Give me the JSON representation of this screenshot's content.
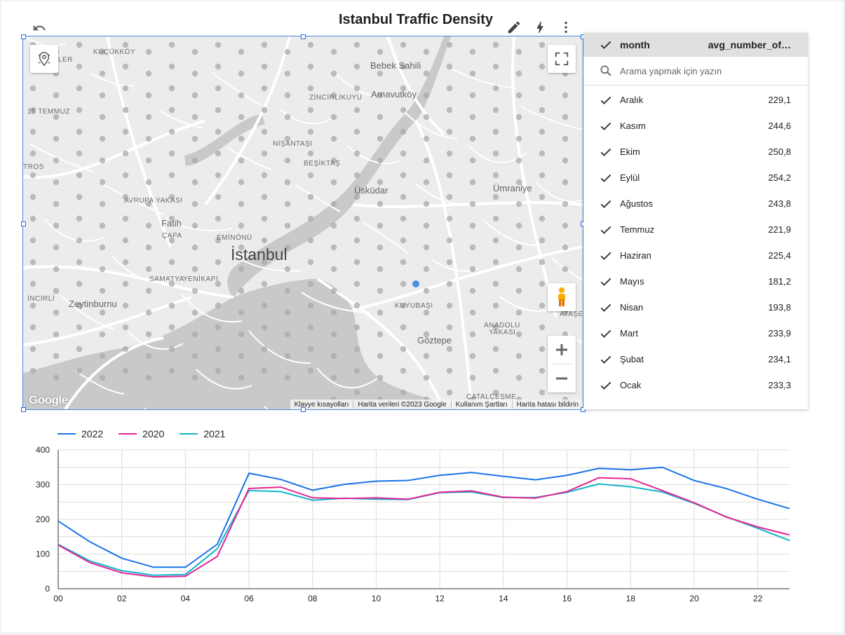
{
  "title": "Istanbul Traffic Density",
  "icons": {
    "undo": "undo-icon",
    "edit": "pencil-icon",
    "quick": "lightning-icon",
    "more": "more-vert-icon"
  },
  "map": {
    "labels": [
      {
        "text": "KÜÇÜKKÖY",
        "cls": ""
      },
      {
        "text": "YÜZEVLER",
        "cls": ""
      },
      {
        "text": "Bebek Sahili",
        "cls": "big"
      },
      {
        "text": "ZİNCİRLİKUYU",
        "cls": ""
      },
      {
        "text": "Arnavutköy",
        "cls": "big"
      },
      {
        "text": "15 TEMMUZ",
        "cls": ""
      },
      {
        "text": "NİŞANTAŞI",
        "cls": ""
      },
      {
        "text": "BEŞİKTAŞ",
        "cls": ""
      },
      {
        "text": "TROS",
        "cls": ""
      },
      {
        "text": "Üsküdar",
        "cls": "big"
      },
      {
        "text": "Ümraniye",
        "cls": "big"
      },
      {
        "text": "AVRUPA YAKASI",
        "cls": ""
      },
      {
        "text": "Fatih",
        "cls": "big"
      },
      {
        "text": "ÇAPA",
        "cls": ""
      },
      {
        "text": "EMİNÖNÜ",
        "cls": ""
      },
      {
        "text": "İstanbul",
        "cls": "city"
      },
      {
        "text": "SAMATYA",
        "cls": ""
      },
      {
        "text": "YENİKAPI",
        "cls": ""
      },
      {
        "text": "İNCİRLİ",
        "cls": ""
      },
      {
        "text": "Zeytinburnu",
        "cls": "big"
      },
      {
        "text": "KUYUBAŞI",
        "cls": ""
      },
      {
        "text": "ANADOLU",
        "cls": ""
      },
      {
        "text": "YAKASI",
        "cls": ""
      },
      {
        "text": "Göztepe",
        "cls": "big"
      },
      {
        "text": "ATAŞE",
        "cls": ""
      },
      {
        "text": "ÇATALÇEŞME",
        "cls": ""
      }
    ],
    "google": "Google",
    "attribution": [
      "Klavye kısayolları",
      "Harita verileri ©2023 Google",
      "Kullanım Şartları",
      "Harita hatası bildirin"
    ]
  },
  "table": {
    "header": {
      "col1": "month",
      "col2": "avg_number_of…"
    },
    "search_placeholder": "Arama yapmak için yazın",
    "rows": [
      {
        "name": "Aralık",
        "value": "229,1"
      },
      {
        "name": "Kasım",
        "value": "244,6"
      },
      {
        "name": "Ekim",
        "value": "250,8"
      },
      {
        "name": "Eylül",
        "value": "254,2"
      },
      {
        "name": "Ağustos",
        "value": "243,8"
      },
      {
        "name": "Temmuz",
        "value": "221,9"
      },
      {
        "name": "Haziran",
        "value": "225,4"
      },
      {
        "name": "Mayıs",
        "value": "181,2"
      },
      {
        "name": "Nisan",
        "value": "193,8"
      },
      {
        "name": "Mart",
        "value": "233,9"
      },
      {
        "name": "Şubat",
        "value": "234,1"
      },
      {
        "name": "Ocak",
        "value": "233,3"
      }
    ]
  },
  "chart_data": {
    "type": "line",
    "x": [
      0,
      1,
      2,
      3,
      4,
      5,
      6,
      7,
      8,
      9,
      10,
      11,
      12,
      13,
      14,
      15,
      16,
      17,
      18,
      19,
      20,
      21,
      22,
      23
    ],
    "xticks": [
      "00",
      "02",
      "04",
      "06",
      "08",
      "10",
      "12",
      "14",
      "16",
      "18",
      "20",
      "22"
    ],
    "ylim": [
      0,
      400
    ],
    "yticks": [
      0,
      100,
      200,
      300,
      400
    ],
    "grid": true,
    "legend": "top-left",
    "series": [
      {
        "name": "2022",
        "color": "#1a73e8",
        "values": [
          195,
          135,
          88,
          62,
          62,
          128,
          333,
          315,
          284,
          301,
          310,
          312,
          327,
          335,
          324,
          314,
          327,
          347,
          343,
          350,
          312,
          289,
          258,
          231
        ]
      },
      {
        "name": "2020",
        "color": "#e52592",
        "values": [
          126,
          75,
          46,
          34,
          36,
          93,
          289,
          293,
          262,
          260,
          262,
          258,
          278,
          282,
          264,
          261,
          280,
          320,
          317,
          283,
          248,
          207,
          178,
          155
        ]
      },
      {
        "name": "2021",
        "color": "#12b5cb",
        "values": [
          128,
          80,
          52,
          39,
          41,
          115,
          283,
          280,
          255,
          261,
          258,
          257,
          277,
          279,
          263,
          263,
          278,
          302,
          294,
          279,
          246,
          208,
          174,
          139
        ]
      }
    ]
  }
}
